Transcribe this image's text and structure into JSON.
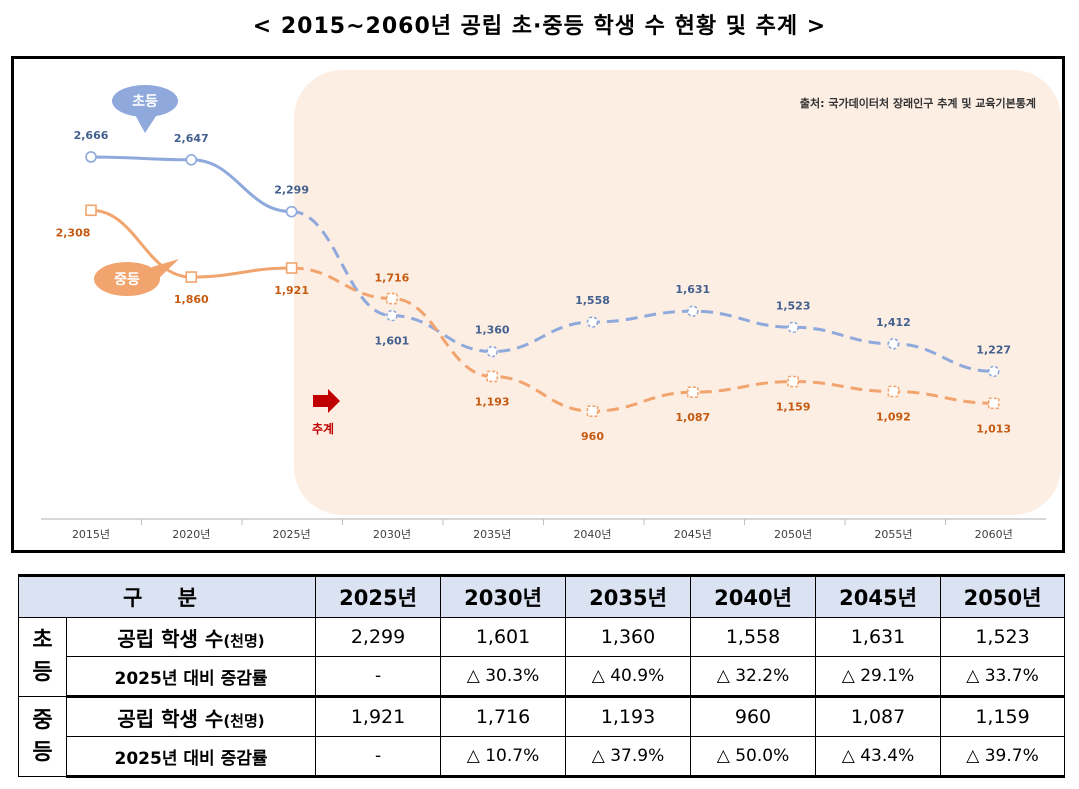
{
  "title": "< 2015~2060년 공립 초·중등 학생 수 현황 및 추계 >",
  "source_note": "출처: 국가데이터처 장래인구 추계 및 교육기본통계",
  "forecast_label": "추계",
  "chart_data": {
    "type": "line",
    "categories": [
      "2015년",
      "2020년",
      "2025년",
      "2030년",
      "2035년",
      "2040년",
      "2045년",
      "2050년",
      "2055년",
      "2060년"
    ],
    "actual_until_index": 2,
    "ylim": [
      800,
      2800
    ],
    "grid": false,
    "series": [
      {
        "name": "초등",
        "color": "#8fa9dc",
        "label_color": "#44608f",
        "marker": "circle",
        "values": [
          2666,
          2647,
          2299,
          1601,
          1360,
          1558,
          1631,
          1523,
          1412,
          1227
        ],
        "labels": [
          "2,666",
          "2,647",
          "2,299",
          "1,601",
          "1,360",
          "1,558",
          "1,631",
          "1,523",
          "1,412",
          "1,227"
        ]
      },
      {
        "name": "중등",
        "color": "#f2a46e",
        "label_color": "#c55a11",
        "marker": "square",
        "values": [
          2308,
          1860,
          1921,
          1716,
          1193,
          960,
          1087,
          1159,
          1092,
          1013
        ],
        "labels": [
          "2,308",
          "1,860",
          "1,921",
          "1,716",
          "1,193",
          "960",
          "1,087",
          "1,159",
          "1,092",
          "1,013"
        ]
      }
    ]
  },
  "table": {
    "header": [
      "구 분",
      "2025년",
      "2030년",
      "2035년",
      "2040년",
      "2045년",
      "2050년"
    ],
    "groups": [
      {
        "name": "초등",
        "rows": [
          {
            "metric_main": "공립 학생 수",
            "metric_unit": "(천명)",
            "values": [
              "2,299",
              "1,601",
              "1,360",
              "1,558",
              "1,631",
              "1,523"
            ]
          },
          {
            "metric_main": "2025년 대비 증감률",
            "metric_unit": "",
            "values": [
              "-",
              "△ 30.3%",
              "△ 40.9%",
              "△ 32.2%",
              "△ 29.1%",
              "△ 33.7%"
            ]
          }
        ]
      },
      {
        "name": "중등",
        "rows": [
          {
            "metric_main": "공립 학생 수",
            "metric_unit": "(천명)",
            "values": [
              "1,921",
              "1,716",
              "1,193",
              "960",
              "1,087",
              "1,159"
            ]
          },
          {
            "metric_main": "2025년 대비 증감률",
            "metric_unit": "",
            "values": [
              "-",
              "△ 10.7%",
              "△ 37.9%",
              "△ 50.0%",
              "△ 43.4%",
              "△ 39.7%"
            ]
          }
        ]
      }
    ]
  }
}
